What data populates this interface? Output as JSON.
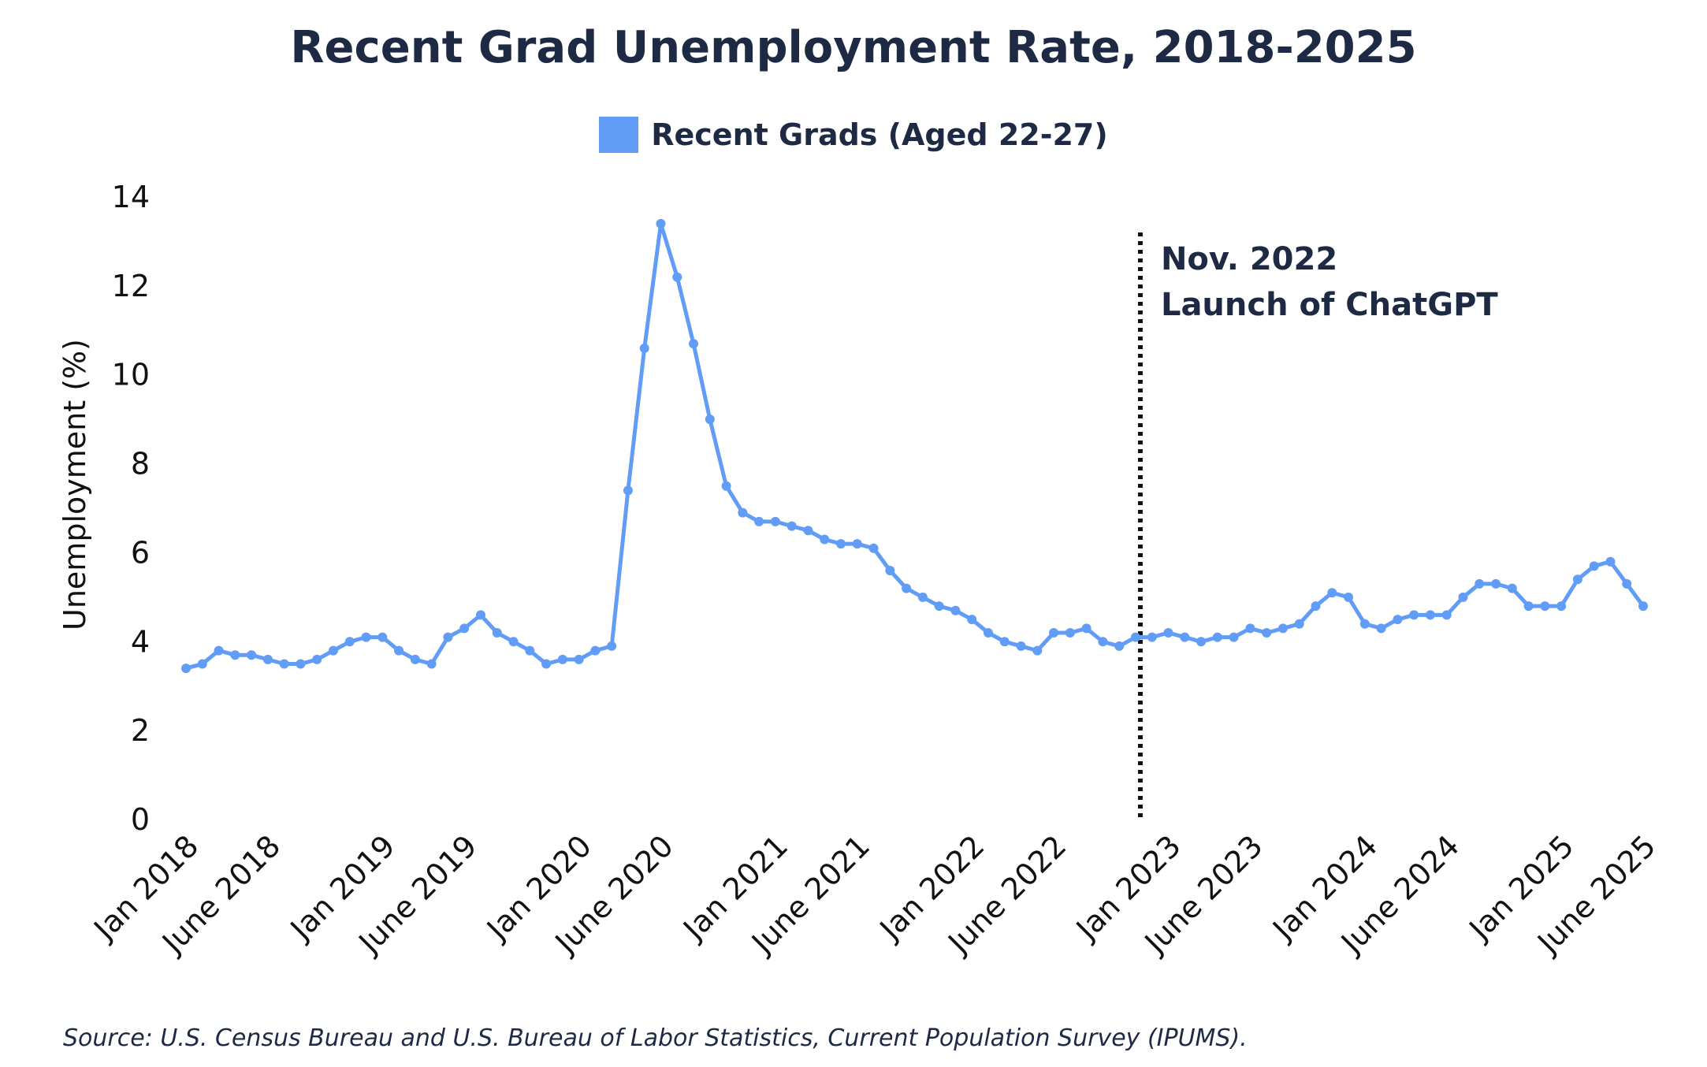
{
  "chart_data": {
    "type": "line",
    "title": "Recent Grad Unemployment Rate, 2018-2025",
    "ylabel": "Unemployment (%)",
    "xlabel": "",
    "ylim": [
      0,
      14
    ],
    "yticks": [
      0,
      2,
      4,
      6,
      8,
      10,
      12,
      14
    ],
    "legend_position": "top-center",
    "grid": false,
    "x_start": "Jan 2018",
    "x_end": "June 2025",
    "x_tick_labels": [
      {
        "index": 0,
        "label": "Jan 2018"
      },
      {
        "index": 5,
        "label": "June 2018"
      },
      {
        "index": 12,
        "label": "Jan 2019"
      },
      {
        "index": 17,
        "label": "June 2019"
      },
      {
        "index": 24,
        "label": "Jan 2020"
      },
      {
        "index": 29,
        "label": "June 2020"
      },
      {
        "index": 36,
        "label": "Jan 2021"
      },
      {
        "index": 41,
        "label": "June 2021"
      },
      {
        "index": 48,
        "label": "Jan 2022"
      },
      {
        "index": 53,
        "label": "June 2022"
      },
      {
        "index": 60,
        "label": "Jan 2023"
      },
      {
        "index": 65,
        "label": "June 2023"
      },
      {
        "index": 72,
        "label": "Jan 2024"
      },
      {
        "index": 77,
        "label": "June 2024"
      },
      {
        "index": 84,
        "label": "Jan 2025"
      },
      {
        "index": 89,
        "label": "June 2025"
      }
    ],
    "series": [
      {
        "name": "Recent Grads (Aged 22-27)",
        "color": "#619cf7",
        "values": [
          3.4,
          3.5,
          3.8,
          3.7,
          3.7,
          3.6,
          3.5,
          3.5,
          3.6,
          3.8,
          4.0,
          4.1,
          4.1,
          3.8,
          3.6,
          3.5,
          4.1,
          4.3,
          4.6,
          4.2,
          4.0,
          3.8,
          3.5,
          3.6,
          3.6,
          3.8,
          3.9,
          7.4,
          10.6,
          13.4,
          12.2,
          10.7,
          9.0,
          7.5,
          6.9,
          6.7,
          6.7,
          6.6,
          6.5,
          6.3,
          6.2,
          6.2,
          6.1,
          5.6,
          5.2,
          5.0,
          4.8,
          4.7,
          4.5,
          4.2,
          4.0,
          3.9,
          3.8,
          4.2,
          4.2,
          4.3,
          4.0,
          3.9,
          4.1,
          4.1,
          4.2,
          4.1,
          4.0,
          4.1,
          4.1,
          4.3,
          4.2,
          4.3,
          4.4,
          4.8,
          5.1,
          5.0,
          4.4,
          4.3,
          4.5,
          4.6,
          4.6,
          4.6,
          5.0,
          5.3,
          5.3,
          5.2,
          4.8,
          4.8,
          4.8,
          5.4,
          5.7,
          5.8,
          5.3,
          4.8
        ]
      }
    ],
    "annotations": [
      {
        "x_index": 58,
        "line_style": "dotted",
        "lines": [
          "Nov. 2022",
          "Launch of ChatGPT"
        ]
      }
    ]
  },
  "source": "Source: U.S. Census Bureau and U.S. Bureau of Labor Statistics, Current Population Survey (IPUMS)."
}
